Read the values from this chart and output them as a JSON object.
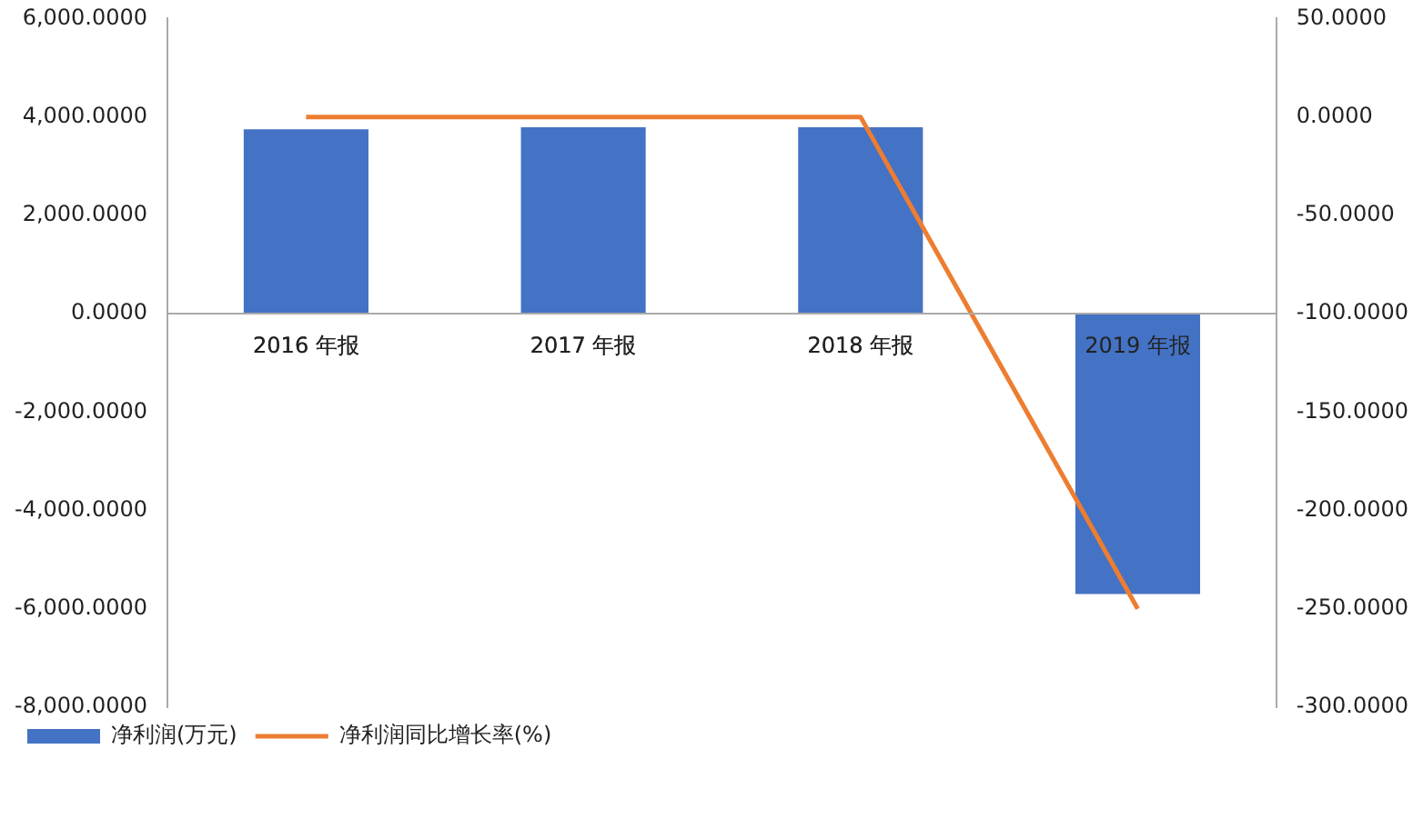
{
  "chart_data": {
    "type": "bar",
    "categories": [
      "2016 年报",
      "2017 年报",
      "2018 年报",
      "2019 年报"
    ],
    "series": [
      {
        "name": "净利润(万元)",
        "color": "#4472c4",
        "values": [
          3750,
          3790,
          3790,
          -5700
        ]
      },
      {
        "name": "净利润同比增长率(%)",
        "type": "line",
        "axis": "y2",
        "color": "#ed7d31",
        "values": [
          0,
          0,
          0,
          -250
        ]
      }
    ],
    "ylim": [
      -8000,
      6000
    ],
    "yticks": [
      {
        "value": -8000,
        "label": "-8,000.0000"
      },
      {
        "value": -6000,
        "label": "-6,000.0000"
      },
      {
        "value": -4000,
        "label": "-4,000.0000"
      },
      {
        "value": -2000,
        "label": "-2,000.0000"
      },
      {
        "value": 0,
        "label": "0.0000"
      },
      {
        "value": 2000,
        "label": "2,000.0000"
      },
      {
        "value": 4000,
        "label": "4,000.0000"
      },
      {
        "value": 6000,
        "label": "6,000.0000"
      }
    ],
    "y2lim": [
      -300,
      50
    ],
    "y2ticks": [
      {
        "value": -300,
        "label": "-300.0000"
      },
      {
        "value": -250,
        "label": "-250.0000"
      },
      {
        "value": -200,
        "label": "-200.0000"
      },
      {
        "value": -150,
        "label": "-150.0000"
      },
      {
        "value": -100,
        "label": "-100.0000"
      },
      {
        "value": -50,
        "label": "-50.0000"
      },
      {
        "value": 0,
        "label": "0.0000"
      },
      {
        "value": 50,
        "label": "50.0000"
      }
    ],
    "grid": false,
    "legend": "bottom",
    "marker": "none",
    "line_style": "solid"
  }
}
